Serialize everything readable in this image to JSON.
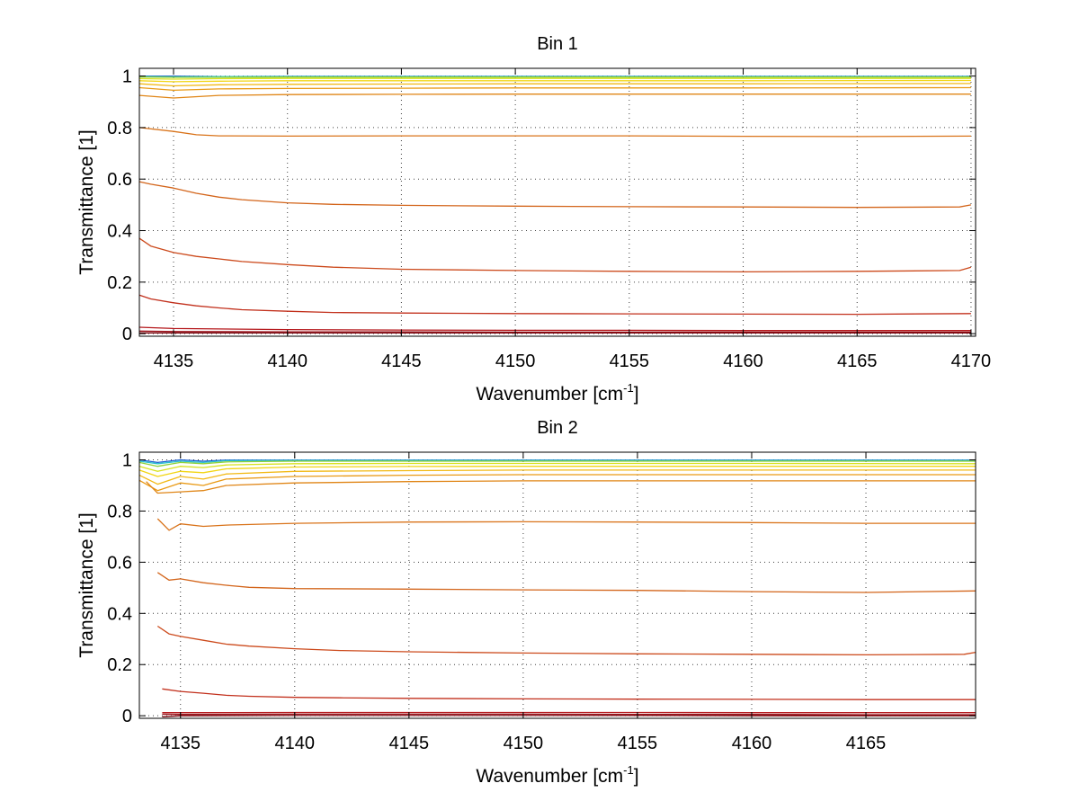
{
  "chart_data": [
    {
      "type": "line",
      "title": "Bin 1",
      "xlabel": "Wavenumber [cm",
      "xlabel_sup": "-1",
      "xlabel_end": "]",
      "ylabel": "Transmittance [1]",
      "xlim": [
        4133.5,
        4170.2
      ],
      "ylim": [
        -0.01,
        1.03
      ],
      "xticks": [
        4135,
        4140,
        4145,
        4150,
        4155,
        4160,
        4165,
        4170
      ],
      "xtick_labels": [
        "4135",
        "4140",
        "4145",
        "4150",
        "4155",
        "4160",
        "4165",
        "4170"
      ],
      "yticks": [
        0,
        0.2,
        0.4,
        0.6,
        0.8,
        1
      ],
      "ytick_labels": [
        "0",
        "0.2",
        "0.4",
        "0.6",
        "0.8",
        "1"
      ],
      "grid": true,
      "series": [
        {
          "color": "#1f5fd0",
          "x": [
            4133.5,
            4135,
            4137,
            4140,
            4145,
            4150,
            4160,
            4170
          ],
          "y": [
            1.0,
            1.0,
            0.998,
            0.999,
            0.999,
            0.999,
            0.999,
            0.999
          ]
        },
        {
          "color": "#29c0cf",
          "x": [
            4133.5,
            4135,
            4137,
            4140,
            4145,
            4150,
            4160,
            4170
          ],
          "y": [
            0.998,
            0.997,
            0.998,
            0.998,
            0.998,
            0.998,
            0.998,
            0.998
          ]
        },
        {
          "color": "#8fd23a",
          "x": [
            4133.5,
            4135,
            4137,
            4140,
            4145,
            4150,
            4160,
            4170
          ],
          "y": [
            0.996,
            0.995,
            0.995,
            0.996,
            0.996,
            0.996,
            0.996,
            0.996
          ]
        },
        {
          "color": "#d8e21e",
          "x": [
            4133.5,
            4135,
            4137,
            4140,
            4145,
            4150,
            4160,
            4170
          ],
          "y": [
            0.99,
            0.988,
            0.99,
            0.991,
            0.991,
            0.991,
            0.991,
            0.991
          ]
        },
        {
          "color": "#f2d514",
          "x": [
            4133.5,
            4135,
            4137,
            4140,
            4145,
            4150,
            4160,
            4170
          ],
          "y": [
            0.982,
            0.978,
            0.98,
            0.982,
            0.982,
            0.982,
            0.982,
            0.983
          ]
        },
        {
          "color": "#f2b915",
          "x": [
            4133.5,
            4135,
            4137,
            4140,
            4145,
            4150,
            4160,
            4170
          ],
          "y": [
            0.97,
            0.962,
            0.966,
            0.968,
            0.969,
            0.97,
            0.97,
            0.971
          ]
        },
        {
          "color": "#e99a16",
          "x": [
            4133.5,
            4135,
            4137,
            4140,
            4145,
            4150,
            4160,
            4170
          ],
          "y": [
            0.955,
            0.945,
            0.95,
            0.952,
            0.953,
            0.954,
            0.954,
            0.955
          ]
        },
        {
          "color": "#e08617",
          "x": [
            4133.5,
            4135,
            4137,
            4140,
            4145,
            4150,
            4160,
            4170
          ],
          "y": [
            0.925,
            0.915,
            0.925,
            0.928,
            0.929,
            0.93,
            0.93,
            0.93
          ]
        },
        {
          "color": "#d9731a",
          "x": [
            4133.5,
            4135,
            4136,
            4137,
            4140,
            4145,
            4150,
            4155,
            4160,
            4165,
            4170
          ],
          "y": [
            0.8,
            0.785,
            0.772,
            0.768,
            0.767,
            0.768,
            0.768,
            0.768,
            0.766,
            0.765,
            0.767
          ]
        },
        {
          "color": "#d3651b",
          "x": [
            4133.5,
            4134,
            4135,
            4136,
            4137,
            4138,
            4140,
            4142,
            4145,
            4150,
            4155,
            4160,
            4165,
            4169.5,
            4170
          ],
          "y": [
            0.59,
            0.58,
            0.565,
            0.545,
            0.53,
            0.52,
            0.508,
            0.502,
            0.498,
            0.495,
            0.493,
            0.492,
            0.49,
            0.492,
            0.5
          ]
        },
        {
          "color": "#cc4a1c",
          "x": [
            4133.5,
            4134,
            4135,
            4136,
            4137,
            4138,
            4140,
            4142,
            4145,
            4150,
            4155,
            4160,
            4165,
            4169.5,
            4170
          ],
          "y": [
            0.37,
            0.34,
            0.315,
            0.3,
            0.29,
            0.28,
            0.268,
            0.258,
            0.25,
            0.245,
            0.242,
            0.24,
            0.242,
            0.245,
            0.258
          ]
        },
        {
          "color": "#c2301c",
          "x": [
            4133.5,
            4134,
            4135,
            4136,
            4137,
            4138,
            4140,
            4142,
            4145,
            4150,
            4155,
            4160,
            4165,
            4170
          ],
          "y": [
            0.15,
            0.135,
            0.12,
            0.108,
            0.1,
            0.093,
            0.087,
            0.082,
            0.08,
            0.078,
            0.077,
            0.076,
            0.075,
            0.078
          ]
        },
        {
          "color": "#b5181c",
          "x": [
            4133.5,
            4135,
            4140,
            4145,
            4150,
            4155,
            4160,
            4165,
            4170
          ],
          "y": [
            0.025,
            0.02,
            0.016,
            0.014,
            0.013,
            0.013,
            0.012,
            0.012,
            0.012
          ]
        },
        {
          "color": "#9a0f17",
          "x": [
            4133.5,
            4135,
            4140,
            4145,
            4150,
            4155,
            4160,
            4165,
            4170
          ],
          "y": [
            0.01,
            0.008,
            0.007,
            0.007,
            0.006,
            0.006,
            0.006,
            0.006,
            0.006
          ]
        },
        {
          "color": "#7a0a12",
          "x": [
            4133.5,
            4135,
            4140,
            4145,
            4150,
            4155,
            4160,
            4165,
            4170
          ],
          "y": [
            0.003,
            0.003,
            0.003,
            0.003,
            0.003,
            0.003,
            0.003,
            0.003,
            0.003
          ]
        }
      ]
    },
    {
      "type": "line",
      "title": "Bin 2",
      "xlabel": "Wavenumber [cm",
      "xlabel_sup": "-1",
      "xlabel_end": "]",
      "ylabel": "Transmittance [1]",
      "xlim": [
        4133.2,
        4169.8
      ],
      "ylim": [
        -0.01,
        1.03
      ],
      "xticks": [
        4135,
        4140,
        4145,
        4150,
        4155,
        4160,
        4165
      ],
      "xtick_labels": [
        "4135",
        "4140",
        "4145",
        "4150",
        "4155",
        "4160",
        "4165"
      ],
      "yticks": [
        0,
        0.2,
        0.4,
        0.6,
        0.8,
        1
      ],
      "ytick_labels": [
        "0",
        "0.2",
        "0.4",
        "0.6",
        "0.8",
        "1"
      ],
      "grid": true,
      "series": [
        {
          "color": "#1f5fd0",
          "x": [
            4133.2,
            4134,
            4135,
            4136,
            4137,
            4140,
            4145,
            4150,
            4160,
            4169.8
          ],
          "y": [
            1.0,
            0.99,
            1.0,
            0.995,
            0.999,
            0.999,
            0.999,
            0.999,
            0.999,
            0.999
          ]
        },
        {
          "color": "#29c0cf",
          "x": [
            4133.2,
            4134,
            4135,
            4136,
            4137,
            4140,
            4145,
            4150,
            4160,
            4169.8
          ],
          "y": [
            0.995,
            0.985,
            0.995,
            0.99,
            0.997,
            0.998,
            0.998,
            0.998,
            0.998,
            0.998
          ]
        },
        {
          "color": "#8fd23a",
          "x": [
            4133.2,
            4134,
            4135,
            4136,
            4137,
            4140,
            4145,
            4150,
            4160,
            4169.8
          ],
          "y": [
            0.99,
            0.975,
            0.99,
            0.985,
            0.992,
            0.995,
            0.995,
            0.995,
            0.995,
            0.995
          ]
        },
        {
          "color": "#d8e21e",
          "x": [
            4133.2,
            4134,
            4135,
            4136,
            4137,
            4140,
            4145,
            4150,
            4160,
            4169.8
          ],
          "y": [
            0.975,
            0.955,
            0.975,
            0.97,
            0.98,
            0.985,
            0.986,
            0.986,
            0.986,
            0.985
          ]
        },
        {
          "color": "#f2d514",
          "x": [
            4133.2,
            4134,
            4135,
            4136,
            4137,
            4140,
            4145,
            4150,
            4160,
            4169.8
          ],
          "y": [
            0.96,
            0.935,
            0.955,
            0.95,
            0.965,
            0.972,
            0.974,
            0.975,
            0.975,
            0.975
          ]
        },
        {
          "color": "#f2b915",
          "x": [
            4133.2,
            4134,
            4135,
            4136,
            4137,
            4140,
            4145,
            4150,
            4160,
            4169.8
          ],
          "y": [
            0.94,
            0.905,
            0.935,
            0.925,
            0.945,
            0.955,
            0.958,
            0.96,
            0.96,
            0.96
          ]
        },
        {
          "color": "#e99a16",
          "x": [
            4133.2,
            4134,
            4135,
            4136,
            4137,
            4140,
            4145,
            4150,
            4160,
            4169.8
          ],
          "y": [
            0.92,
            0.88,
            0.91,
            0.9,
            0.925,
            0.935,
            0.94,
            0.942,
            0.942,
            0.942
          ]
        },
        {
          "color": "#e08617",
          "x": [
            4133.5,
            4134,
            4135,
            4136,
            4137,
            4140,
            4145,
            4150,
            4160,
            4169.8
          ],
          "y": [
            0.915,
            0.87,
            0.875,
            0.88,
            0.9,
            0.91,
            0.915,
            0.918,
            0.918,
            0.918
          ]
        },
        {
          "color": "#d9731a",
          "x": [
            4134,
            4134.5,
            4135,
            4136,
            4137,
            4140,
            4145,
            4150,
            4155,
            4160,
            4165,
            4169.8
          ],
          "y": [
            0.77,
            0.725,
            0.75,
            0.74,
            0.745,
            0.752,
            0.757,
            0.758,
            0.757,
            0.755,
            0.752,
            0.752
          ]
        },
        {
          "color": "#d3651b",
          "x": [
            4134,
            4134.5,
            4135,
            4136,
            4137,
            4138,
            4140,
            4145,
            4150,
            4155,
            4160,
            4165,
            4169.8
          ],
          "y": [
            0.56,
            0.53,
            0.535,
            0.52,
            0.51,
            0.502,
            0.497,
            0.495,
            0.492,
            0.49,
            0.485,
            0.482,
            0.488
          ]
        },
        {
          "color": "#cc4a1c",
          "x": [
            4134,
            4134.5,
            4135,
            4136,
            4137,
            4138,
            4140,
            4142,
            4145,
            4150,
            4155,
            4160,
            4165,
            4169.3,
            4169.8
          ],
          "y": [
            0.35,
            0.32,
            0.31,
            0.295,
            0.28,
            0.272,
            0.262,
            0.255,
            0.25,
            0.245,
            0.242,
            0.24,
            0.238,
            0.24,
            0.248
          ]
        },
        {
          "color": "#c2301c",
          "x": [
            4134.2,
            4135,
            4136,
            4137,
            4138,
            4140,
            4142,
            4145,
            4150,
            4155,
            4160,
            4165,
            4169.8
          ],
          "y": [
            0.105,
            0.095,
            0.088,
            0.08,
            0.076,
            0.072,
            0.07,
            0.068,
            0.066,
            0.065,
            0.064,
            0.063,
            0.063
          ]
        },
        {
          "color": "#b5181c",
          "x": [
            4134.2,
            4135,
            4140,
            4145,
            4150,
            4155,
            4160,
            4165,
            4169.8
          ],
          "y": [
            0.012,
            0.012,
            0.013,
            0.013,
            0.013,
            0.013,
            0.012,
            0.012,
            0.012
          ]
        },
        {
          "color": "#9a0f17",
          "x": [
            4134.2,
            4135,
            4140,
            4145,
            4150,
            4155,
            4160,
            4165,
            4169.8
          ],
          "y": [
            0.006,
            0.005,
            0.006,
            0.006,
            0.006,
            0.005,
            0.005,
            0.004,
            0.004
          ]
        },
        {
          "color": "#7a0a12",
          "x": [
            4134.2,
            4135,
            4140,
            4145,
            4150,
            4155,
            4160,
            4165,
            4169.8
          ],
          "y": [
            -0.004,
            0.0,
            0.001,
            0.001,
            0.001,
            0.001,
            0.0,
            0.0,
            0.0
          ]
        }
      ]
    }
  ]
}
